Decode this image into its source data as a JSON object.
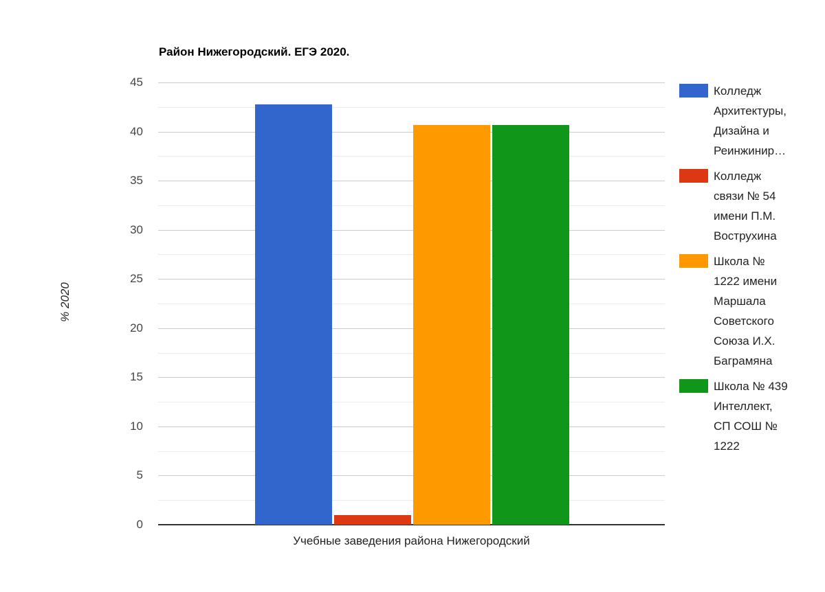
{
  "chart_data": {
    "type": "bar",
    "title": "Район Нижегородский. ЕГЭ 2020.",
    "xlabel": "Учебные заведения района Нижегородский",
    "ylabel": "% 2020",
    "ylim": [
      0,
      45
    ],
    "yticks": [
      "0",
      "5",
      "10",
      "15",
      "20",
      "25",
      "30",
      "35",
      "40",
      "45"
    ],
    "grid": true,
    "legend_position": "right",
    "categories": [
      "Учебные заведения района Нижегородский"
    ],
    "series": [
      {
        "name": "Колледж Архитектуры, Дизайна и Реинжинир…",
        "color": "#3366cc",
        "values": [
          42.8
        ]
      },
      {
        "name": "Колледж связи № 54 имени П.М. Вострухина",
        "color": "#dc3912",
        "values": [
          1.0
        ]
      },
      {
        "name": "Школа № 1222 имени Маршала Советского Союза И.Х. Баграмяна",
        "color": "#ff9900",
        "values": [
          40.7
        ]
      },
      {
        "name": "Школа № 439 Интеллект, СП СОШ № 1222",
        "color": "#109618",
        "values": [
          40.7
        ]
      }
    ]
  },
  "legend": [
    {
      "lines": [
        "Колледж",
        "Архитектуры,",
        "Дизайна и",
        "Реинжинир…"
      ]
    },
    {
      "lines": [
        "Колледж",
        "связи № 54",
        "имени П.М.",
        "Вострухина"
      ]
    },
    {
      "lines": [
        "Школа №",
        "1222 имени",
        "Маршала",
        "Советского",
        "Союза И.Х.",
        "Баграмяна"
      ]
    },
    {
      "lines": [
        "Школа № 439",
        "Интеллект,",
        "СП СОШ №",
        "1222"
      ]
    }
  ]
}
